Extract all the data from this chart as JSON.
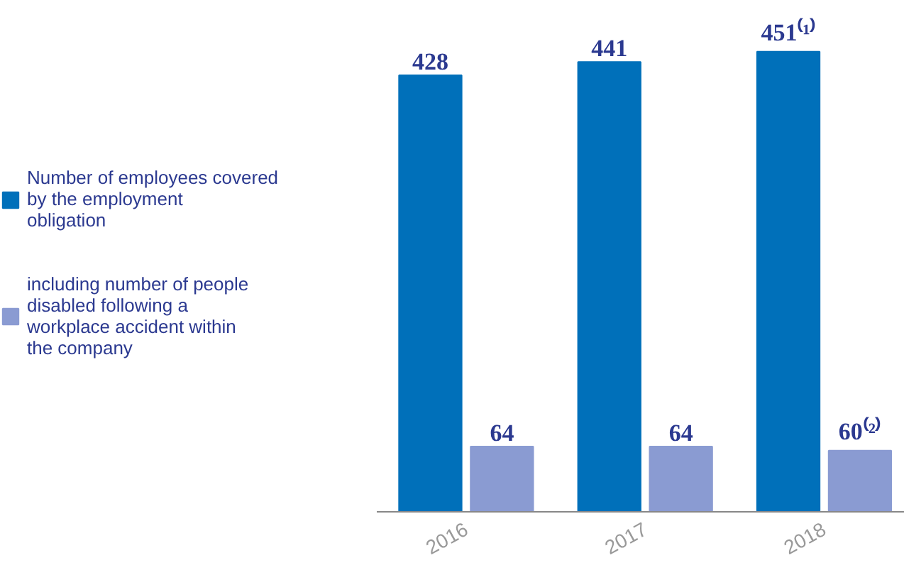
{
  "chart_data": {
    "type": "bar",
    "categories": [
      "2016",
      "2017",
      "2018"
    ],
    "series": [
      {
        "name": "Number of employees covered by the employment obligation",
        "color": "#0070ba",
        "values": [
          428,
          441,
          451
        ],
        "value_labels": [
          "428",
          "441",
          "451⁽¹⁾"
        ]
      },
      {
        "name": "including number of people disabled following a workplace accident within the company",
        "color": "#8a9bd2",
        "values": [
          64,
          64,
          60
        ],
        "value_labels": [
          "64",
          "64",
          "60⁽²⁾"
        ]
      }
    ],
    "legend": "left"
  }
}
